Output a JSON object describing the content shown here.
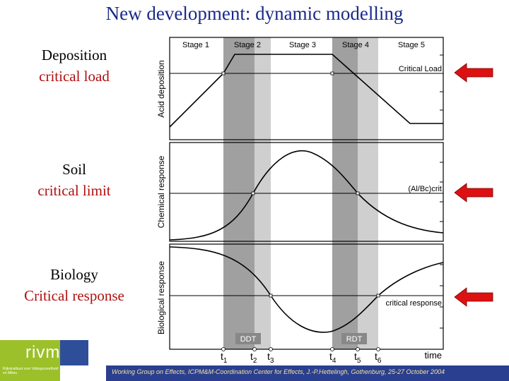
{
  "title": "New development: dynamic modelling",
  "side_labels": [
    {
      "line1": "Deposition",
      "line2": "critical load"
    },
    {
      "line1": "Soil",
      "line2": "critical limit"
    },
    {
      "line1": "Biology",
      "line2": "Critical response"
    }
  ],
  "stages": [
    "Stage 1",
    "Stage 2",
    "Stage 3",
    "Stage 4",
    "Stage 5"
  ],
  "panel_ylabels": [
    "Acid deposition",
    "Chemical response",
    "Biological response"
  ],
  "threshold_labels": [
    "Critical Load",
    "(Al/Bc)crit",
    "critical response"
  ],
  "delay_labels": [
    "DDT",
    "RDT"
  ],
  "time_ticks": [
    {
      "base": "t",
      "sub": "1"
    },
    {
      "base": "t",
      "sub": "2"
    },
    {
      "base": "t",
      "sub": "3"
    },
    {
      "base": "t",
      "sub": "4"
    },
    {
      "base": "t",
      "sub": "5"
    },
    {
      "base": "t",
      "sub": "6"
    }
  ],
  "xlabel": "time",
  "logo": {
    "text": "rivm",
    "subtext": "Rijksinstituut voor Volksgezondheid en Milieu"
  },
  "footer": "Working Group on Effects, ICPM&M-Coordination Center for Effects, J.-P.Hettelingh, Gothenburg, 25-27 October 2004",
  "colors": {
    "title": "#1a2a8a",
    "accent_red": "#b01010",
    "arrow": "#dd1111",
    "dark_band": "#a0a0a0",
    "light_band": "#cfcfcf"
  }
}
